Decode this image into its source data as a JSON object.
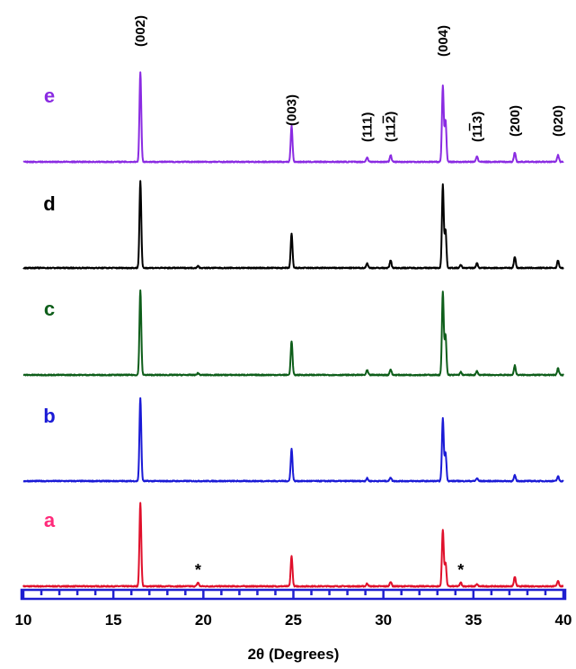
{
  "chart_data": {
    "type": "line",
    "xlabel": "2θ (Degrees)",
    "ylabel": "",
    "xlim": [
      10,
      40
    ],
    "x_ticks": [
      10,
      15,
      20,
      25,
      30,
      35,
      40
    ],
    "grid": false,
    "legend": "none",
    "axis_color": "#1f1fd0",
    "series": [
      {
        "name": "a",
        "color": "#e0102b",
        "label_color": "#ff2a7a",
        "peaks": [
          {
            "x": 16.5,
            "h": 0.88
          },
          {
            "x": 19.7,
            "h": 0.04
          },
          {
            "x": 24.9,
            "h": 0.32
          },
          {
            "x": 29.1,
            "h": 0.03
          },
          {
            "x": 30.4,
            "h": 0.05
          },
          {
            "x": 33.3,
            "h": 0.6
          },
          {
            "x": 33.45,
            "h": 0.25
          },
          {
            "x": 34.3,
            "h": 0.04
          },
          {
            "x": 35.2,
            "h": 0.02
          },
          {
            "x": 37.3,
            "h": 0.1
          },
          {
            "x": 39.7,
            "h": 0.06
          }
        ]
      },
      {
        "name": "b",
        "color": "#1a1ad6",
        "label_color": "#1a1ad6",
        "peaks": [
          {
            "x": 16.5,
            "h": 0.88
          },
          {
            "x": 24.9,
            "h": 0.34
          },
          {
            "x": 29.1,
            "h": 0.03
          },
          {
            "x": 30.4,
            "h": 0.04
          },
          {
            "x": 33.3,
            "h": 0.66
          },
          {
            "x": 33.45,
            "h": 0.3
          },
          {
            "x": 35.2,
            "h": 0.03
          },
          {
            "x": 37.3,
            "h": 0.06
          },
          {
            "x": 39.7,
            "h": 0.05
          }
        ]
      },
      {
        "name": "c",
        "color": "#0e5e1a",
        "label_color": "#0e5e1a",
        "peaks": [
          {
            "x": 16.5,
            "h": 0.9
          },
          {
            "x": 19.7,
            "h": 0.02
          },
          {
            "x": 24.9,
            "h": 0.36
          },
          {
            "x": 29.1,
            "h": 0.05
          },
          {
            "x": 30.4,
            "h": 0.06
          },
          {
            "x": 33.3,
            "h": 0.88
          },
          {
            "x": 33.45,
            "h": 0.42
          },
          {
            "x": 34.3,
            "h": 0.03
          },
          {
            "x": 35.2,
            "h": 0.04
          },
          {
            "x": 37.3,
            "h": 0.1
          },
          {
            "x": 39.7,
            "h": 0.07
          }
        ]
      },
      {
        "name": "d",
        "color": "#000000",
        "label_color": "#000000",
        "peaks": [
          {
            "x": 16.5,
            "h": 0.92
          },
          {
            "x": 19.7,
            "h": 0.02
          },
          {
            "x": 24.9,
            "h": 0.36
          },
          {
            "x": 29.1,
            "h": 0.05
          },
          {
            "x": 30.4,
            "h": 0.08
          },
          {
            "x": 33.3,
            "h": 0.88
          },
          {
            "x": 33.45,
            "h": 0.4
          },
          {
            "x": 34.3,
            "h": 0.03
          },
          {
            "x": 35.2,
            "h": 0.05
          },
          {
            "x": 37.3,
            "h": 0.12
          },
          {
            "x": 39.7,
            "h": 0.08
          }
        ]
      },
      {
        "name": "e",
        "color": "#8a2be2",
        "label_color": "#8a2be2",
        "peaks": [
          {
            "x": 16.5,
            "h": 0.95
          },
          {
            "x": 24.9,
            "h": 0.38
          },
          {
            "x": 29.1,
            "h": 0.05
          },
          {
            "x": 30.4,
            "h": 0.07
          },
          {
            "x": 33.3,
            "h": 0.8
          },
          {
            "x": 33.45,
            "h": 0.44
          },
          {
            "x": 35.2,
            "h": 0.06
          },
          {
            "x": 37.3,
            "h": 0.1
          },
          {
            "x": 39.7,
            "h": 0.07
          }
        ]
      }
    ],
    "annotations": [
      {
        "text": "(002)",
        "x": 16.5
      },
      {
        "text": "(003)",
        "x": 24.9
      },
      {
        "text": "(111)",
        "x": 29.1
      },
      {
        "text": "(112)",
        "x": 30.4,
        "overbar": "2"
      },
      {
        "text": "(004)",
        "x": 33.3
      },
      {
        "text": "(113)",
        "x": 35.2,
        "overbar": "1"
      },
      {
        "text": "(200)",
        "x": 37.3
      },
      {
        "text": "(020)",
        "x": 39.7
      }
    ],
    "markers": [
      {
        "text": "*",
        "x": 19.7
      },
      {
        "text": "*",
        "x": 34.3
      }
    ]
  }
}
